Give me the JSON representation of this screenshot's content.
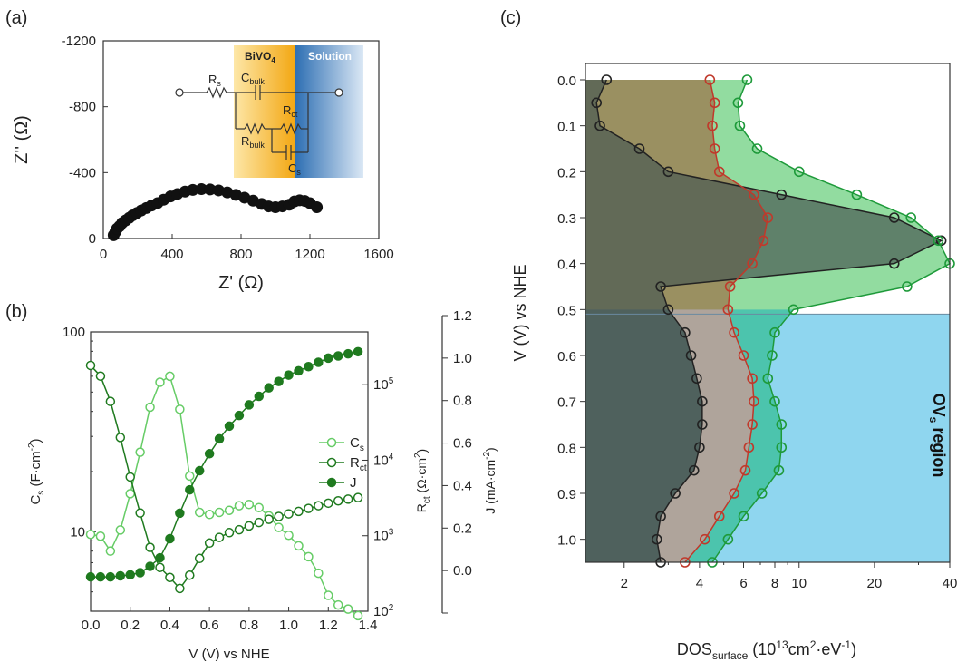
{
  "colors": {
    "dark_green": "#1f7a1f",
    "light_green": "#66cc66",
    "black_series": "#222222",
    "red_series": "#c0392b",
    "green_series": "#1e9a3a",
    "bivo4_fill": "#f6b21a",
    "solution_fill": "#2e6fb3",
    "ovs_region_fill": "#8fd6ef",
    "brown_fill": "#a0522d",
    "teal_fill": "#3fbfb0"
  },
  "chart_data": [
    {
      "panel": "(a)",
      "type": "scatter",
      "xlabel": "Z' (Ω)",
      "ylabel": "Z'' (Ω)",
      "xlim": [
        0,
        1600
      ],
      "ylim": [
        0,
        -1200
      ],
      "xticks": [
        "0",
        "400",
        "800",
        "1200",
        "1600"
      ],
      "yticks": [
        "0",
        "-400",
        "-800",
        "-1200"
      ],
      "x": [
        60,
        70,
        80,
        95,
        110,
        130,
        150,
        170,
        195,
        220,
        250,
        280,
        315,
        350,
        390,
        430,
        475,
        520,
        570,
        620,
        670,
        720,
        770,
        820,
        870,
        920,
        960,
        1000,
        1040,
        1080,
        1110,
        1140,
        1170,
        1200,
        1240
      ],
      "y": [
        -20,
        -40,
        -60,
        -75,
        -95,
        -110,
        -125,
        -140,
        -155,
        -170,
        -185,
        -200,
        -215,
        -235,
        -255,
        -270,
        -285,
        -295,
        -300,
        -298,
        -292,
        -280,
        -265,
        -248,
        -230,
        -210,
        -195,
        -190,
        -195,
        -205,
        -225,
        -232,
        -228,
        -215,
        -190
      ],
      "inset": {
        "labels": {
          "rs": "R",
          "rs_sub": "s",
          "cbulk": "C",
          "cbulk_sub": "bulk",
          "rct": "R",
          "rct_sub": "ct",
          "rbulk": "R",
          "rbulk_sub": "bulk",
          "cs": "C",
          "cs_sub": "s",
          "bivo4": "BiVO",
          "bivo4_sub": "4",
          "solution": "Solution"
        }
      }
    },
    {
      "panel": "(b)",
      "type": "line",
      "xlabel": "V (V) vs NHE",
      "ylabel_left": "C",
      "ylabel_left_sub": "s",
      "ylabel_left_unit": " (F·cm",
      "ylabel_left_sup": "-2",
      "ylabel_left_end": ")",
      "ylabel_mid": "R",
      "ylabel_mid_sub": "ct",
      "ylabel_mid_unit": " (Ω·cm",
      "ylabel_mid_sup": "2",
      "ylabel_mid_end": ")",
      "ylabel_right": "J (mA·cm",
      "ylabel_right_sup": "-2",
      "ylabel_right_end": ")",
      "xlim": [
        0,
        1.4
      ],
      "xticks": [
        "0.0",
        "0.2",
        "0.4",
        "0.6",
        "0.8",
        "1.0",
        "1.2",
        "1.4"
      ],
      "ylim_left": [
        4,
        100
      ],
      "yticks_left": [
        "10",
        "100"
      ],
      "ylim_mid": [
        100,
        500000
      ],
      "yticks_mid": [
        "10",
        "10",
        "10",
        "10"
      ],
      "yticks_mid_exp": [
        "2",
        "3",
        "4",
        "5"
      ],
      "ylim_right": [
        -0.2,
        1.2
      ],
      "yticks_right": [
        "0.0",
        "0.2",
        "0.4",
        "0.6",
        "0.8",
        "1.0",
        "1.2"
      ],
      "x": [
        0.0,
        0.05,
        0.1,
        0.15,
        0.2,
        0.25,
        0.3,
        0.35,
        0.4,
        0.45,
        0.5,
        0.55,
        0.6,
        0.65,
        0.7,
        0.75,
        0.8,
        0.85,
        0.9,
        0.95,
        1.0,
        1.05,
        1.1,
        1.15,
        1.2,
        1.25,
        1.3,
        1.35
      ],
      "legend": {
        "position": "right",
        "entries": [
          "C",
          "R",
          "J"
        ],
        "subs": [
          "s",
          "ct",
          ""
        ]
      },
      "series": [
        {
          "name": "Cs",
          "axis": "left",
          "style": "open-light",
          "values": [
            9.7,
            9.5,
            8.0,
            10.2,
            15.5,
            25,
            42,
            56,
            60,
            41,
            19,
            12.5,
            12.2,
            12.5,
            12.8,
            13.5,
            13.7,
            13.2,
            12,
            10.5,
            9.6,
            8.5,
            7.5,
            6.2,
            4.8,
            4.3,
            4.1,
            3.8
          ]
        },
        {
          "name": "Rct",
          "axis": "mid",
          "style": "open-dark",
          "values": [
            180000,
            130000,
            60000,
            20000,
            6000,
            2000,
            700,
            380,
            280,
            200,
            300,
            500,
            800,
            950,
            1100,
            1200,
            1350,
            1500,
            1650,
            1800,
            1950,
            2100,
            2300,
            2500,
            2700,
            2900,
            3050,
            3200
          ]
        },
        {
          "name": "J",
          "axis": "right",
          "style": "filled-dark",
          "values": [
            -0.03,
            -0.03,
            -0.03,
            -0.025,
            -0.02,
            -0.01,
            0.02,
            0.06,
            0.15,
            0.27,
            0.38,
            0.47,
            0.55,
            0.62,
            0.68,
            0.73,
            0.78,
            0.82,
            0.86,
            0.89,
            0.92,
            0.94,
            0.96,
            0.98,
            1.0,
            1.01,
            1.02,
            1.03
          ]
        }
      ]
    },
    {
      "panel": "(c)",
      "type": "area",
      "xlabel": "DOS",
      "xlabel_sub": "surface",
      "xlabel_unit": " (10",
      "xlabel_sup": "13",
      "xlabel_unit2": "cm",
      "xlabel_sup2": "2",
      "xlabel_unit3": "·eV",
      "xlabel_sup3": "-1",
      "xlabel_end": ")",
      "ylabel": "V (V) vs NHE",
      "xscale": "log",
      "xlim": [
        1.4,
        40
      ],
      "xticks": [
        "2",
        "4",
        "6",
        "8",
        "10",
        "20",
        "40"
      ],
      "ylim": [
        1.05,
        0.0
      ],
      "yticks": [
        "0.0",
        "0.1",
        "0.2",
        "0.3",
        "0.4",
        "0.5",
        "0.6",
        "0.7",
        "0.8",
        "0.9",
        "1.0"
      ],
      "annotation": "OV",
      "annotation_sub": "s",
      "annotation_end": " region",
      "y": [
        0.0,
        0.05,
        0.1,
        0.15,
        0.2,
        0.25,
        0.3,
        0.35,
        0.4,
        0.45,
        0.5,
        0.55,
        0.6,
        0.65,
        0.7,
        0.75,
        0.8,
        0.85,
        0.9,
        0.95,
        1.0,
        1.05
      ],
      "series": [
        {
          "name": "black",
          "color": "black",
          "values": [
            1.7,
            1.55,
            1.6,
            2.3,
            3.0,
            8.5,
            24,
            37,
            24,
            2.8,
            3.0,
            3.5,
            3.7,
            3.9,
            4.1,
            4.1,
            4.0,
            3.8,
            3.2,
            2.8,
            2.7,
            2.8
          ]
        },
        {
          "name": "red",
          "color": "red",
          "values": [
            4.4,
            4.6,
            4.5,
            4.6,
            4.8,
            6.6,
            7.5,
            7.2,
            6.5,
            5.3,
            5.2,
            5.5,
            6.0,
            6.5,
            6.6,
            6.5,
            6.3,
            6.1,
            5.5,
            4.8,
            4.2,
            3.5
          ]
        },
        {
          "name": "green",
          "color": "green",
          "values": [
            6.2,
            5.7,
            5.8,
            6.8,
            10,
            17,
            28,
            36,
            40,
            27,
            9.5,
            8.0,
            7.8,
            7.5,
            8.0,
            8.5,
            8.5,
            8.3,
            7.1,
            6.0,
            5.2,
            4.5
          ]
        }
      ]
    }
  ]
}
